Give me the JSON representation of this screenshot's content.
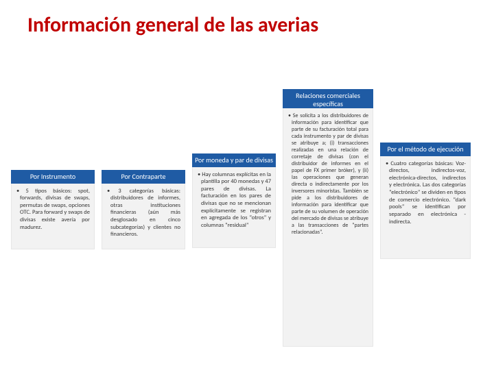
{
  "title": "Información general de las averias",
  "colors": {
    "title": "#c00000",
    "header_bg": "#1f5ba4",
    "header_text": "#ffffff",
    "body_bg": "#f2f2f2",
    "body_text": "#333333",
    "page_bg": "#ffffff"
  },
  "columns": {
    "instrumento": {
      "header": "Por Instrumento",
      "bullet": "5 tipos básicos: spot, forwards, divisas de swaps, permutas de swaps, opciones OTC. Para forward y swaps de divisas existe avería por madurez."
    },
    "contraparte": {
      "header": "Por Contraparte",
      "bullet": "3 categorías básicas: distribuidores de informes, otras instituciones financieras (aún más desglosado en cinco subcategorías) y clientes no financieros."
    },
    "moneda": {
      "header": "Por moneda y par de divisas",
      "bullet": "Hay columnas explícitas en la plantilla por 40 monedas y 47 pares de divisas. La facturación en los pares de divisas que no se mencionan explícitamente se registran en agregada de los “otros” y columnas “residual”"
    },
    "relaciones_header": "Relaciones comerciales específicas",
    "relaciones_bullet": "Se solicita a los distribuidores de información para identificar que parte de su facturación total para cada instrumento y par de divisas se atribuye a; (i) transacciones realizadas en una relación de corretaje de divisas (con el distribuidor de informes en el papel de FX primer bróker), y (ii) las operaciones que generan directa o indirectamente por los inversores minoristas. También se pide a los distribuidores de información para identificar que parte de su volumen de operación del mercado de divisas se atribuye a las transacciones de “partes relacionadas”.",
    "ejecucion": {
      "header": "Por el método de ejecución",
      "bullet": "Cuatro categorías básicas: Voz-directos, indirectos-voz, electrónica-directos, indirectos y electrónica. Las dos categorías “electrónico” se dividen en tipos de comercio electrónico. “dark pools” se identifican por separado en electrónica - indirecta."
    }
  }
}
